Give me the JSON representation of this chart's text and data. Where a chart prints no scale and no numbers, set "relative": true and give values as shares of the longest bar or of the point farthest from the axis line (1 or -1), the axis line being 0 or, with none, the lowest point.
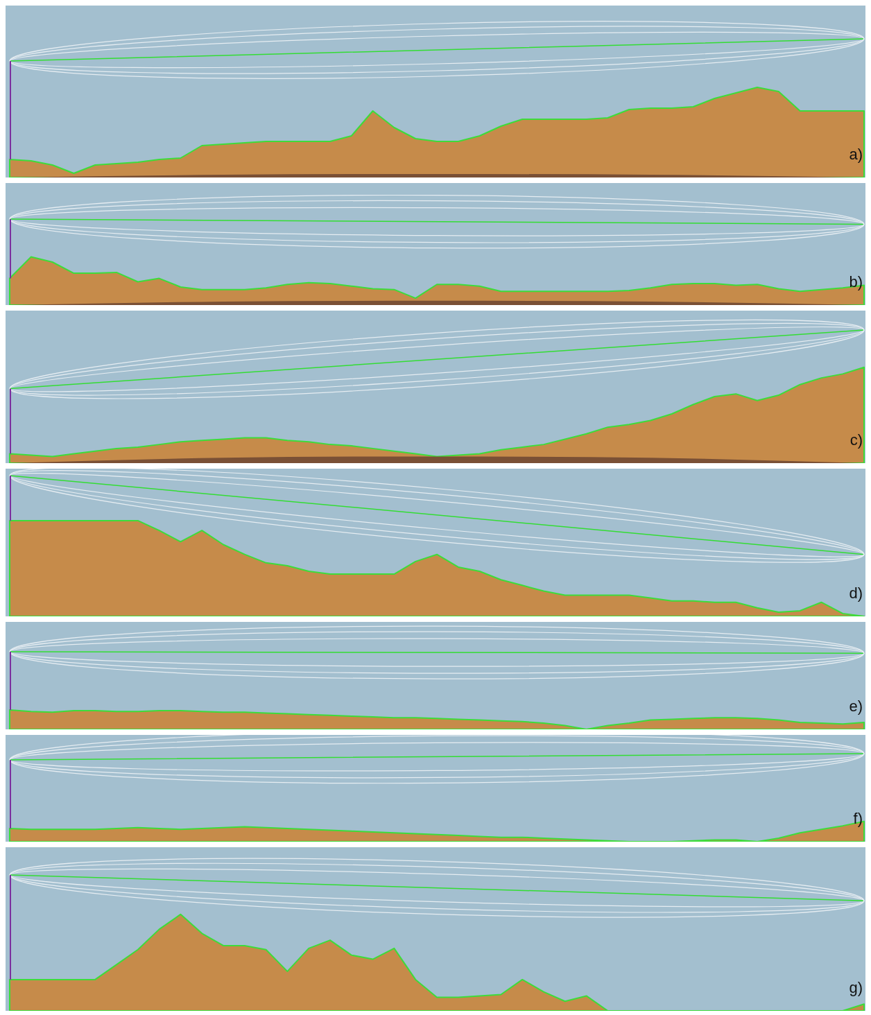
{
  "chart_data": [
    {
      "type": "area",
      "relative": true,
      "title": "a)",
      "categories": [
        null,
        null,
        null,
        null,
        null,
        null,
        null,
        null,
        null,
        null,
        null,
        null,
        null,
        null,
        null,
        null,
        null,
        null,
        null,
        null,
        null,
        null,
        null,
        null,
        null,
        null,
        null,
        null,
        null,
        null,
        null,
        null,
        null,
        null,
        null,
        null,
        null,
        null,
        null,
        null,
        null
      ],
      "series": [
        {
          "type": "area",
          "color": "#c68b4a",
          "values": [
            0.13,
            0.12,
            0.09,
            0.03,
            0.09,
            0.1,
            0.11,
            0.13,
            0.14,
            0.23,
            0.24,
            0.25,
            0.26,
            0.26,
            0.26,
            0.26,
            0.3,
            0.48,
            0.36,
            0.28,
            0.26,
            0.26,
            0.3,
            0.37,
            0.42,
            0.42,
            0.42,
            0.42,
            0.43,
            0.49,
            0.5,
            0.5,
            0.51,
            0.57,
            0.61,
            0.65,
            0.62,
            0.48,
            0.48,
            0.48,
            0.48
          ]
        },
        {
          "type": "area",
          "color": "#7a5035",
          "values": [
            0,
            null,
            null,
            null,
            null,
            null,
            null,
            null,
            null,
            null,
            0.02,
            null,
            null,
            null,
            null,
            null,
            null,
            null,
            null,
            null,
            0.025,
            null,
            null,
            null,
            null,
            null,
            null,
            null,
            null,
            null,
            0.02,
            null,
            null,
            null,
            null,
            null,
            null,
            null,
            null,
            null,
            0
          ]
        },
        {
          "type": "line",
          "color": "#33dd33",
          "values": [
            0.84,
            null,
            null,
            null,
            null,
            null,
            null,
            null,
            null,
            null,
            null,
            null,
            null,
            null,
            null,
            null,
            null,
            null,
            null,
            null,
            null,
            null,
            null,
            null,
            null,
            null,
            null,
            null,
            null,
            null,
            null,
            null,
            null,
            null,
            null,
            null,
            null,
            null,
            null,
            null,
            1
          ]
        }
      ]
    },
    {
      "type": "area",
      "relative": true,
      "title": "b)",
      "categories": [
        null,
        null,
        null,
        null,
        null,
        null,
        null,
        null,
        null,
        null,
        null,
        null,
        null,
        null,
        null,
        null,
        null,
        null,
        null,
        null,
        null,
        null,
        null,
        null,
        null,
        null,
        null,
        null,
        null,
        null,
        null,
        null,
        null,
        null,
        null,
        null,
        null,
        null,
        null,
        null,
        null
      ],
      "series": [
        {
          "type": "area",
          "color": "#c68b4a",
          "values": [
            0.31,
            0.56,
            0.5,
            0.37,
            0.37,
            0.38,
            0.27,
            0.31,
            0.21,
            0.18,
            0.18,
            0.18,
            0.2,
            0.24,
            0.26,
            0.25,
            0.22,
            0.19,
            0.18,
            0.08,
            0.24,
            0.24,
            0.22,
            0.16,
            0.16,
            0.16,
            0.16,
            0.16,
            0.16,
            0.17,
            0.2,
            0.24,
            0.25,
            0.25,
            0.23,
            0.24,
            0.19,
            0.16,
            0.18,
            0.2,
            0.23
          ]
        },
        {
          "type": "area",
          "color": "#7a5035",
          "values": [
            0,
            null,
            null,
            null,
            null,
            null,
            null,
            null,
            null,
            null,
            0.04,
            null,
            null,
            null,
            null,
            null,
            null,
            null,
            null,
            null,
            0.05,
            null,
            null,
            null,
            null,
            null,
            null,
            null,
            null,
            null,
            0.04,
            null,
            null,
            null,
            null,
            null,
            null,
            null,
            null,
            null,
            0
          ]
        },
        {
          "type": "line",
          "color": "#33dd33",
          "values": [
            1,
            null,
            null,
            null,
            null,
            null,
            null,
            null,
            null,
            null,
            null,
            null,
            null,
            null,
            null,
            null,
            null,
            null,
            null,
            null,
            null,
            null,
            null,
            null,
            null,
            null,
            null,
            null,
            null,
            null,
            null,
            null,
            null,
            null,
            null,
            null,
            null,
            null,
            null,
            null,
            0.94
          ]
        }
      ]
    },
    {
      "type": "area",
      "relative": true,
      "title": "c)",
      "categories": [
        null,
        null,
        null,
        null,
        null,
        null,
        null,
        null,
        null,
        null,
        null,
        null,
        null,
        null,
        null,
        null,
        null,
        null,
        null,
        null,
        null,
        null,
        null,
        null,
        null,
        null,
        null,
        null,
        null,
        null,
        null,
        null,
        null,
        null,
        null,
        null,
        null,
        null,
        null,
        null,
        null
      ],
      "series": [
        {
          "type": "area",
          "color": "#c68b4a",
          "values": [
            0.07,
            0.06,
            0.05,
            0.07,
            0.09,
            0.11,
            0.12,
            0.14,
            0.16,
            0.17,
            0.18,
            0.19,
            0.19,
            0.17,
            0.16,
            0.14,
            0.13,
            0.11,
            0.09,
            0.07,
            0.05,
            0.06,
            0.07,
            0.1,
            0.12,
            0.14,
            0.18,
            0.22,
            0.27,
            0.29,
            0.32,
            0.37,
            0.44,
            0.5,
            0.52,
            0.47,
            0.51,
            0.59,
            0.64,
            0.67,
            0.72
          ]
        },
        {
          "type": "area",
          "color": "#7a5035",
          "values": [
            0,
            null,
            null,
            null,
            null,
            null,
            null,
            null,
            null,
            null,
            0.04,
            null,
            null,
            null,
            null,
            null,
            null,
            null,
            null,
            null,
            0.05,
            null,
            null,
            null,
            null,
            null,
            null,
            null,
            null,
            null,
            0.04,
            null,
            null,
            null,
            null,
            null,
            null,
            null,
            null,
            null,
            0
          ]
        },
        {
          "type": "line",
          "color": "#33dd33",
          "values": [
            0.56,
            null,
            null,
            null,
            null,
            null,
            null,
            null,
            null,
            null,
            null,
            null,
            null,
            null,
            null,
            null,
            null,
            null,
            null,
            null,
            null,
            null,
            null,
            null,
            null,
            null,
            null,
            null,
            null,
            null,
            null,
            null,
            null,
            null,
            null,
            null,
            null,
            null,
            null,
            null,
            1
          ]
        }
      ]
    },
    {
      "type": "area",
      "relative": true,
      "title": "d)",
      "categories": [
        null,
        null,
        null,
        null,
        null,
        null,
        null,
        null,
        null,
        null,
        null,
        null,
        null,
        null,
        null,
        null,
        null,
        null,
        null,
        null,
        null,
        null,
        null,
        null,
        null,
        null,
        null,
        null,
        null,
        null,
        null,
        null,
        null,
        null,
        null,
        null,
        null,
        null,
        null,
        null,
        null
      ],
      "series": [
        {
          "type": "area",
          "color": "#c68b4a",
          "values": [
            0.68,
            0.68,
            0.68,
            0.68,
            0.68,
            0.68,
            0.68,
            0.61,
            0.53,
            0.61,
            0.51,
            0.44,
            0.38,
            0.36,
            0.32,
            0.3,
            0.3,
            0.3,
            0.3,
            0.39,
            0.44,
            0.35,
            0.32,
            0.26,
            0.22,
            0.18,
            0.15,
            0.15,
            0.15,
            0.15,
            0.13,
            0.11,
            0.11,
            0.1,
            0.1,
            0.06,
            0.03,
            0.04,
            0.1,
            0.02,
            0
          ]
        },
        {
          "type": "line",
          "color": "#33dd33",
          "values": [
            1,
            null,
            null,
            null,
            null,
            null,
            null,
            null,
            null,
            null,
            null,
            null,
            null,
            null,
            null,
            null,
            null,
            null,
            null,
            null,
            null,
            null,
            null,
            null,
            null,
            null,
            null,
            null,
            null,
            null,
            null,
            null,
            null,
            null,
            null,
            null,
            null,
            null,
            null,
            null,
            0.44
          ]
        }
      ]
    },
    {
      "type": "area",
      "relative": true,
      "title": "e)",
      "categories": [
        null,
        null,
        null,
        null,
        null,
        null,
        null,
        null,
        null,
        null,
        null,
        null,
        null,
        null,
        null,
        null,
        null,
        null,
        null,
        null,
        null,
        null,
        null,
        null,
        null,
        null,
        null,
        null,
        null,
        null,
        null,
        null,
        null,
        null,
        null,
        null,
        null,
        null,
        null,
        null,
        null
      ],
      "series": [
        {
          "type": "area",
          "color": "#c68b4a",
          "values": [
            0.25,
            0.23,
            0.22,
            0.24,
            0.24,
            0.23,
            0.23,
            0.24,
            0.24,
            0.23,
            0.22,
            0.22,
            0.21,
            0.2,
            0.19,
            0.18,
            0.17,
            0.16,
            0.15,
            0.15,
            0.14,
            0.13,
            0.12,
            0.11,
            0.1,
            0.08,
            0.05,
            0,
            0.05,
            0.08,
            0.12,
            0.13,
            0.14,
            0.15,
            0.15,
            0.14,
            0.12,
            0.09,
            0.08,
            0.07,
            0.09
          ]
        },
        {
          "type": "line",
          "color": "#33dd33",
          "values": [
            1,
            null,
            null,
            null,
            null,
            null,
            null,
            null,
            null,
            null,
            null,
            null,
            null,
            null,
            null,
            null,
            null,
            null,
            null,
            null,
            null,
            null,
            null,
            null,
            null,
            null,
            null,
            null,
            null,
            null,
            null,
            null,
            null,
            null,
            null,
            null,
            null,
            null,
            null,
            null,
            0.98
          ]
        }
      ]
    },
    {
      "type": "area",
      "relative": true,
      "title": "f)",
      "categories": [
        null,
        null,
        null,
        null,
        null,
        null,
        null,
        null,
        null,
        null,
        null,
        null,
        null,
        null,
        null,
        null,
        null,
        null,
        null,
        null,
        null,
        null,
        null,
        null,
        null,
        null,
        null,
        null,
        null,
        null,
        null,
        null,
        null,
        null,
        null,
        null,
        null,
        null,
        null,
        null,
        null
      ],
      "series": [
        {
          "type": "area",
          "color": "#c68b4a",
          "values": [
            0.15,
            0.14,
            0.14,
            0.14,
            0.14,
            0.15,
            0.16,
            0.15,
            0.14,
            0.15,
            0.16,
            0.17,
            0.16,
            0.15,
            0.14,
            0.13,
            0.12,
            0.11,
            0.1,
            0.09,
            0.08,
            0.07,
            0.06,
            0.05,
            0.05,
            0.04,
            0.03,
            0.02,
            0.01,
            0,
            0,
            0,
            0.01,
            0.02,
            0.02,
            0,
            0.04,
            0.1,
            0.14,
            0.18,
            0.23
          ]
        },
        {
          "type": "line",
          "color": "#33dd33",
          "values": [
            0.93,
            null,
            null,
            null,
            null,
            null,
            null,
            null,
            null,
            null,
            null,
            null,
            null,
            null,
            null,
            null,
            null,
            null,
            null,
            null,
            null,
            null,
            null,
            null,
            null,
            null,
            null,
            null,
            null,
            null,
            null,
            null,
            null,
            null,
            null,
            null,
            null,
            null,
            null,
            null,
            1
          ]
        }
      ]
    },
    {
      "type": "area",
      "relative": true,
      "title": "g)",
      "categories": [
        null,
        null,
        null,
        null,
        null,
        null,
        null,
        null,
        null,
        null,
        null,
        null,
        null,
        null,
        null,
        null,
        null,
        null,
        null,
        null,
        null,
        null,
        null,
        null,
        null,
        null,
        null,
        null,
        null,
        null,
        null,
        null,
        null,
        null,
        null,
        null,
        null,
        null,
        null,
        null,
        null
      ],
      "series": [
        {
          "type": "area",
          "color": "#c68b4a",
          "values": [
            0.23,
            0.23,
            0.23,
            0.23,
            0.23,
            0.34,
            0.45,
            0.6,
            0.71,
            0.57,
            0.48,
            0.48,
            0.45,
            0.29,
            0.46,
            0.52,
            0.41,
            0.38,
            0.46,
            0.23,
            0.1,
            0.1,
            0.11,
            0.12,
            0.23,
            0.14,
            0.07,
            0.11,
            0,
            0,
            0,
            0,
            0,
            0,
            0,
            0,
            0,
            0,
            0,
            0,
            0.05
          ]
        },
        {
          "type": "line",
          "color": "#33dd33",
          "values": [
            1,
            null,
            null,
            null,
            null,
            null,
            null,
            null,
            null,
            null,
            null,
            null,
            null,
            null,
            null,
            null,
            null,
            null,
            null,
            null,
            null,
            null,
            null,
            null,
            null,
            null,
            null,
            null,
            null,
            null,
            null,
            null,
            null,
            null,
            null,
            null,
            null,
            null,
            null,
            null,
            0.81
          ]
        }
      ]
    }
  ]
}
